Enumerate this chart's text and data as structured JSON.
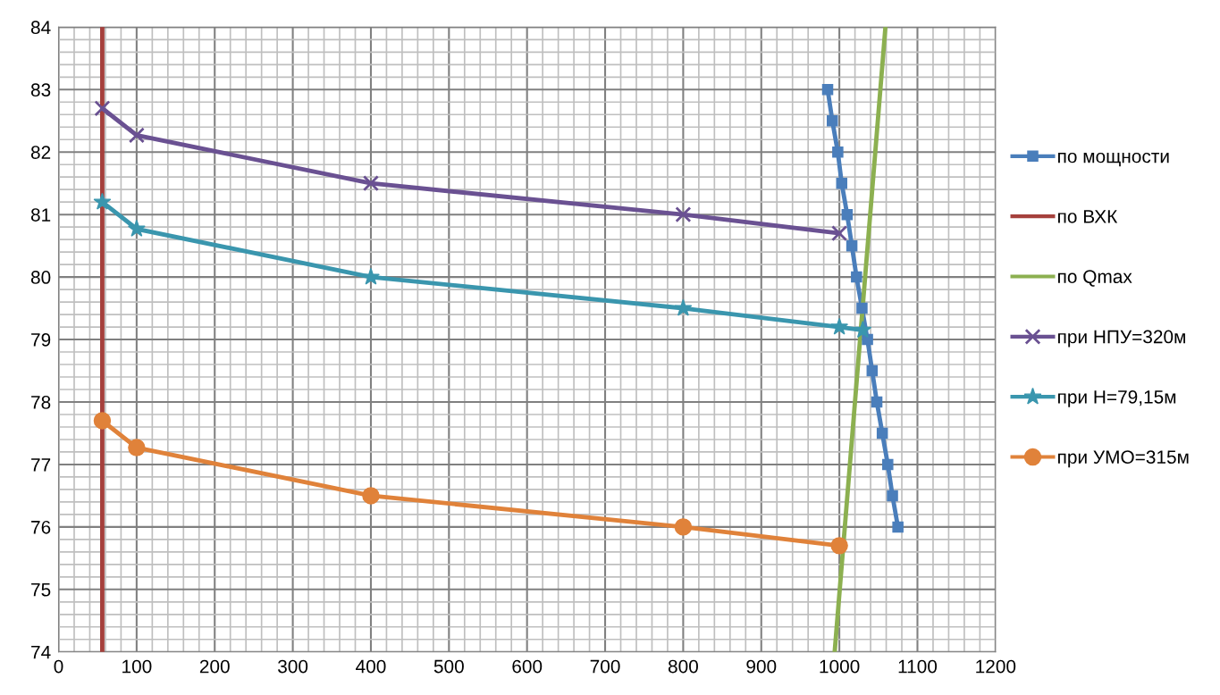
{
  "chart_data": {
    "type": "line",
    "xlim": [
      0,
      1200
    ],
    "ylim": [
      74,
      84
    ],
    "xticks": [
      0,
      100,
      200,
      300,
      400,
      500,
      600,
      700,
      800,
      900,
      1000,
      1100,
      1200
    ],
    "yticks": [
      74,
      75,
      76,
      77,
      78,
      79,
      80,
      81,
      82,
      83,
      84
    ],
    "grid": true,
    "legend": "right",
    "line_style": "solid",
    "series": [
      {
        "name": "по мощности",
        "color": "#4a7ebb",
        "marker": "square",
        "x": [
          985,
          991,
          998,
          1003,
          1010,
          1016,
          1022,
          1029,
          1036,
          1042,
          1048,
          1055,
          1062,
          1068,
          1075
        ],
        "values": [
          83,
          82.5,
          82,
          81.5,
          81,
          80.5,
          80,
          79.5,
          79,
          78.5,
          78,
          77.5,
          77,
          76.5,
          76
        ]
      },
      {
        "name": "по ВХК",
        "color": "#a5403c",
        "marker": "none",
        "x": [
          56,
          56
        ],
        "values": [
          74,
          84
        ]
      },
      {
        "name": "по Qmax",
        "color": "#8cb050",
        "marker": "none",
        "x": [
          994,
          1059
        ],
        "values": [
          74,
          84
        ]
      },
      {
        "name": "при НПУ=320м",
        "color": "#6a5192",
        "marker": "cross",
        "x": [
          56,
          100,
          400,
          800,
          1000
        ],
        "values": [
          82.7,
          82.27,
          81.5,
          81.0,
          80.7
        ]
      },
      {
        "name": "при Н=79,15м",
        "color": "#3a96ae",
        "marker": "star",
        "x": [
          56,
          100,
          400,
          800,
          1000,
          1030
        ],
        "values": [
          81.2,
          80.77,
          80.0,
          79.5,
          79.2,
          79.15
        ]
      },
      {
        "name": "при УМО=315м",
        "color": "#e0823a",
        "marker": "circle",
        "x": [
          56,
          100,
          400,
          800,
          1000
        ],
        "values": [
          77.7,
          77.27,
          76.5,
          76.0,
          75.7
        ]
      }
    ]
  }
}
